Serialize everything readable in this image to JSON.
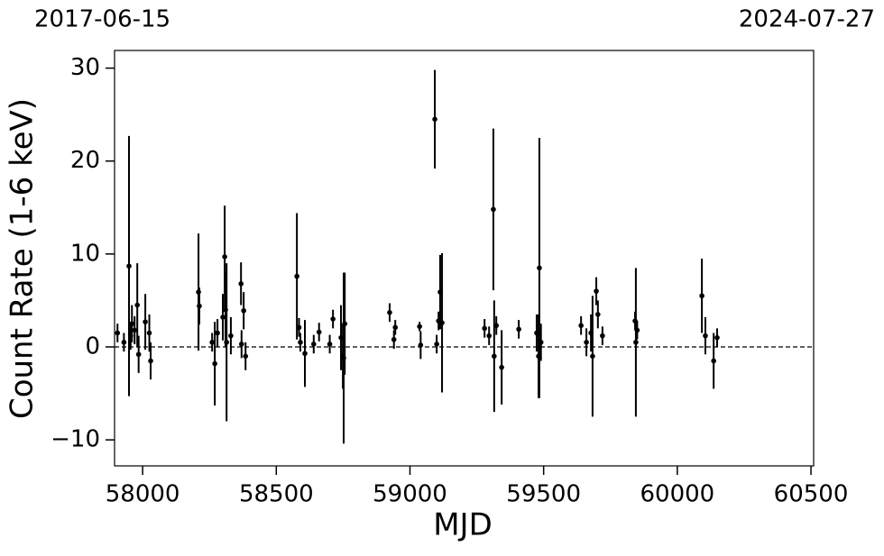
{
  "chart_data": {
    "type": "errorbar",
    "annotations": [
      "2017-06-15",
      "2024-07-27"
    ],
    "xlabel": "MJD",
    "ylabel": "Count Rate (1-6 keV)",
    "xlim": [
      57895,
      60510
    ],
    "ylim": [
      -12.8,
      31.9
    ],
    "xticks": [
      58000,
      58500,
      59000,
      59500,
      60000,
      60500
    ],
    "yticks": [
      {
        "value": -10,
        "label": "−10"
      },
      0,
      10,
      20,
      30
    ],
    "reference_line": 0,
    "series": [
      {
        "color": "#000000",
        "x": [
          57906,
          57930,
          57949,
          57955,
          57960,
          57970,
          57980,
          57985,
          58010,
          58025,
          58030,
          58209,
          58212,
          58260,
          58270,
          58280,
          58300,
          58307,
          58310,
          58314,
          58330,
          58368,
          58370,
          58378,
          58385,
          58577,
          58585,
          58590,
          58607,
          58640,
          58660,
          58700,
          58712,
          58742,
          58749,
          58752,
          58756,
          58924,
          58940,
          58945,
          59036,
          59040,
          59093,
          59100,
          59107,
          59113,
          59120,
          59279,
          59296,
          59312,
          59315,
          59323,
          59343,
          59407,
          59474,
          59481,
          59484,
          59490,
          59640,
          59660,
          59677,
          59683,
          59697,
          59703,
          59720,
          59842,
          59845,
          59850,
          60092,
          60105,
          60136,
          60149
        ],
        "values": [
          1.5,
          0.5,
          8.7,
          1.2,
          2.5,
          1.8,
          4.5,
          -0.8,
          2.7,
          1.5,
          -1.5,
          5.9,
          4.4,
          0.5,
          -1.8,
          1.5,
          3.2,
          9.7,
          4.0,
          0.5,
          1.2,
          6.8,
          0.3,
          3.9,
          -1.0,
          7.6,
          2.1,
          0.5,
          -0.7,
          0.3,
          1.6,
          0.3,
          3.0,
          1.0,
          -1.0,
          -1.2,
          2.5,
          3.7,
          0.8,
          2.1,
          2.2,
          0.2,
          24.5,
          0.3,
          2.8,
          5.9,
          2.6,
          2.0,
          1.2,
          14.8,
          -1.0,
          2.3,
          -2.2,
          1.9,
          1.5,
          -1.0,
          8.5,
          0.5,
          2.3,
          0.5,
          1.5,
          -1.0,
          6.0,
          3.5,
          1.2,
          2.8,
          0.5,
          1.8,
          5.5,
          1.2,
          -1.5,
          1.0
        ],
        "errors": [
          1,
          1,
          14,
          1.5,
          2,
          1.5,
          4.5,
          2,
          3,
          2,
          2,
          6.3,
          2,
          1,
          4.5,
          1.5,
          2.5,
          5.5,
          4,
          8.5,
          2,
          2.3,
          1.5,
          2,
          1.5,
          6.8,
          1,
          1,
          3.6,
          1,
          1,
          1,
          1,
          3.5,
          3.5,
          9.2,
          5.5,
          1,
          1,
          0.8,
          0.5,
          1.5,
          5.3,
          1,
          1,
          4,
          7.5,
          1,
          1,
          8.7,
          6,
          1,
          4,
          1,
          2,
          4.5,
          14,
          2,
          1,
          1.5,
          2,
          6.5,
          1.5,
          1.5,
          1,
          1,
          8,
          1,
          4,
          2,
          3,
          1
        ]
      }
    ]
  }
}
